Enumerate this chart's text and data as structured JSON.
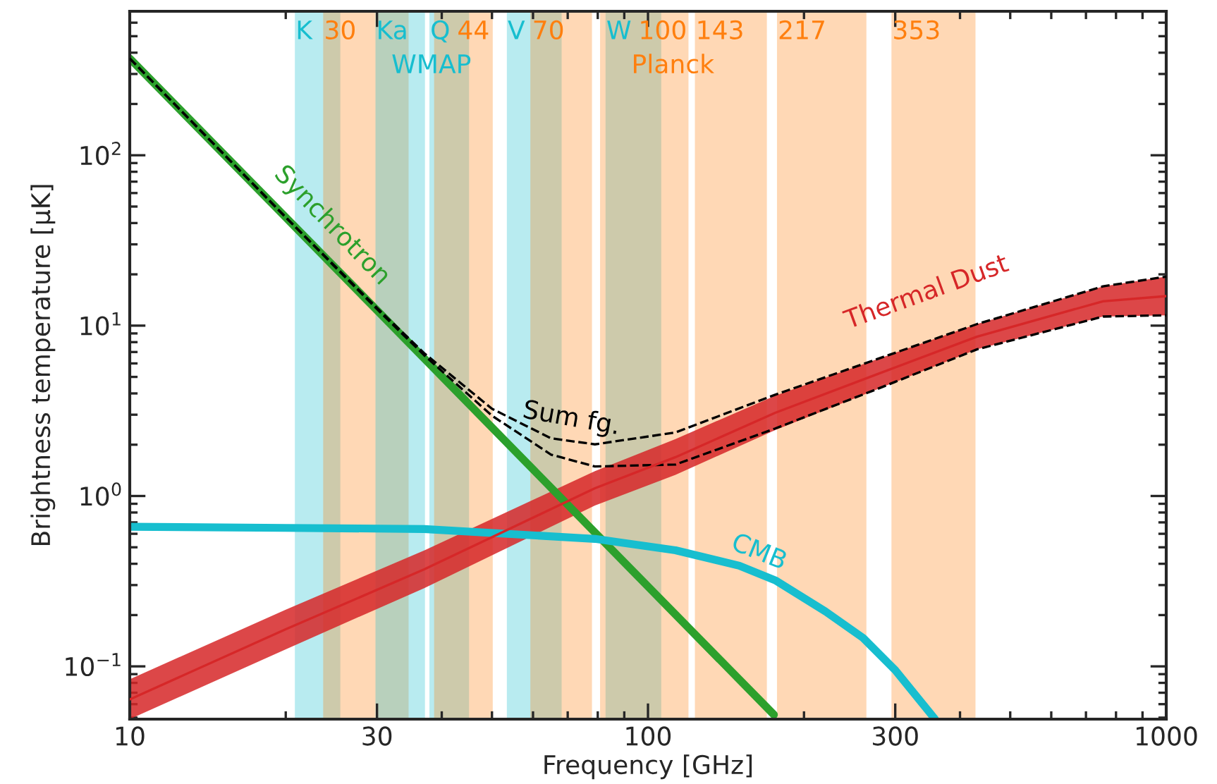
{
  "chart_data": {
    "type": "line",
    "xlabel": "Frequency [GHz]",
    "ylabel": "Brightness temperature [μK]",
    "log": "xy",
    "xlim": [
      10,
      1000
    ],
    "ylim": [
      0.049,
      700
    ],
    "xticks": [
      10,
      30,
      100,
      300,
      1000
    ],
    "yticks": [
      {
        "value": 0.1,
        "label": "10$^{−1}$"
      },
      {
        "value": 1,
        "label": "10$^{0}$"
      },
      {
        "value": 10,
        "label": "10$^{1}$"
      },
      {
        "value": 100,
        "label": "10$^{2}$"
      }
    ],
    "series": [
      {
        "name": "Thermal Dust",
        "color": "#d62728",
        "x": [
          10,
          20,
          37,
          79,
          113,
          176,
          276,
          431,
          755,
          1000
        ],
        "values": [
          0.064,
          0.165,
          0.371,
          1.11,
          1.69,
          3.08,
          5.17,
          8.6,
          13.9,
          14.9
        ],
        "lower": [
          0.049,
          0.126,
          0.288,
          0.88,
          1.33,
          2.44,
          4.22,
          7.25,
          11.3,
          11.5
        ],
        "upper": [
          0.084,
          0.215,
          0.479,
          1.4,
          2.16,
          3.88,
          6.33,
          10.2,
          17.0,
          19.4
        ]
      },
      {
        "name": "Synchrotron",
        "color": "#2ca02c",
        "x": [
          10,
          30,
          100,
          175
        ],
        "values": [
          370,
          12.3,
          0.294,
          0.052
        ]
      },
      {
        "name": "CMB",
        "color": "#17becf",
        "x": [
          10,
          20,
          37,
          79,
          113,
          150,
          176,
          220,
          260,
          300,
          358
        ],
        "values": [
          0.66,
          0.65,
          0.64,
          0.56,
          0.48,
          0.39,
          0.32,
          0.21,
          0.147,
          0.095,
          0.049
        ]
      },
      {
        "name": "Sum fg.",
        "color": "#000000",
        "line_style": "dashed",
        "x": [
          10,
          20,
          30,
          37,
          50,
          65,
          79,
          113,
          176,
          276,
          431,
          755,
          1000
        ],
        "values": [
          370,
          43.3,
          12.7,
          6.89,
          3.25,
          2.18,
          2.01,
          2.36,
          3.93,
          6.34,
          10.2,
          17.0,
          19.4
        ]
      },
      {
        "color": "#000000",
        "line_style": "dashed",
        "x": [
          10,
          20,
          30,
          37,
          50,
          65,
          79,
          113,
          176,
          276,
          431,
          755,
          1000
        ],
        "values": [
          370,
          43.2,
          12.5,
          6.7,
          2.96,
          1.75,
          1.49,
          1.53,
          2.49,
          4.23,
          7.25,
          11.3,
          11.5
        ]
      }
    ],
    "bands": [
      {
        "axis": "x",
        "from": 20.9,
        "to": 25.4,
        "label": "K",
        "color": "#17becf"
      },
      {
        "axis": "x",
        "from": 23.7,
        "to": 34.4,
        "label": "30",
        "color": "#ff7f0e"
      },
      {
        "axis": "x",
        "from": 29.9,
        "to": 37.0,
        "label": "Ka",
        "color": "#17becf"
      },
      {
        "axis": "x",
        "from": 38.0,
        "to": 45.0,
        "label": "Q",
        "color": "#17becf"
      },
      {
        "axis": "x",
        "from": 38.8,
        "to": 50.0,
        "label": "44",
        "color": "#ff7f0e"
      },
      {
        "axis": "x",
        "from": 53.6,
        "to": 67.9,
        "label": "V",
        "color": "#17becf"
      },
      {
        "axis": "x",
        "from": 59.5,
        "to": 77.7,
        "label": "70",
        "color": "#ff7f0e"
      },
      {
        "axis": "x",
        "from": 83.1,
        "to": 105.7,
        "label": "W",
        "color": "#17becf"
      },
      {
        "axis": "x",
        "from": 81.1,
        "to": 119.3,
        "label": "100",
        "color": "#ff7f0e"
      },
      {
        "axis": "x",
        "from": 123.6,
        "to": 169,
        "label": "143",
        "color": "#ff7f0e"
      },
      {
        "axis": "x",
        "from": 178,
        "to": 263,
        "label": "217",
        "color": "#ff7f0e"
      },
      {
        "axis": "x",
        "from": 296,
        "to": 427,
        "label": "353",
        "color": "#ff7f0e"
      }
    ],
    "annotations": [
      "WMAP",
      "Planck"
    ]
  }
}
